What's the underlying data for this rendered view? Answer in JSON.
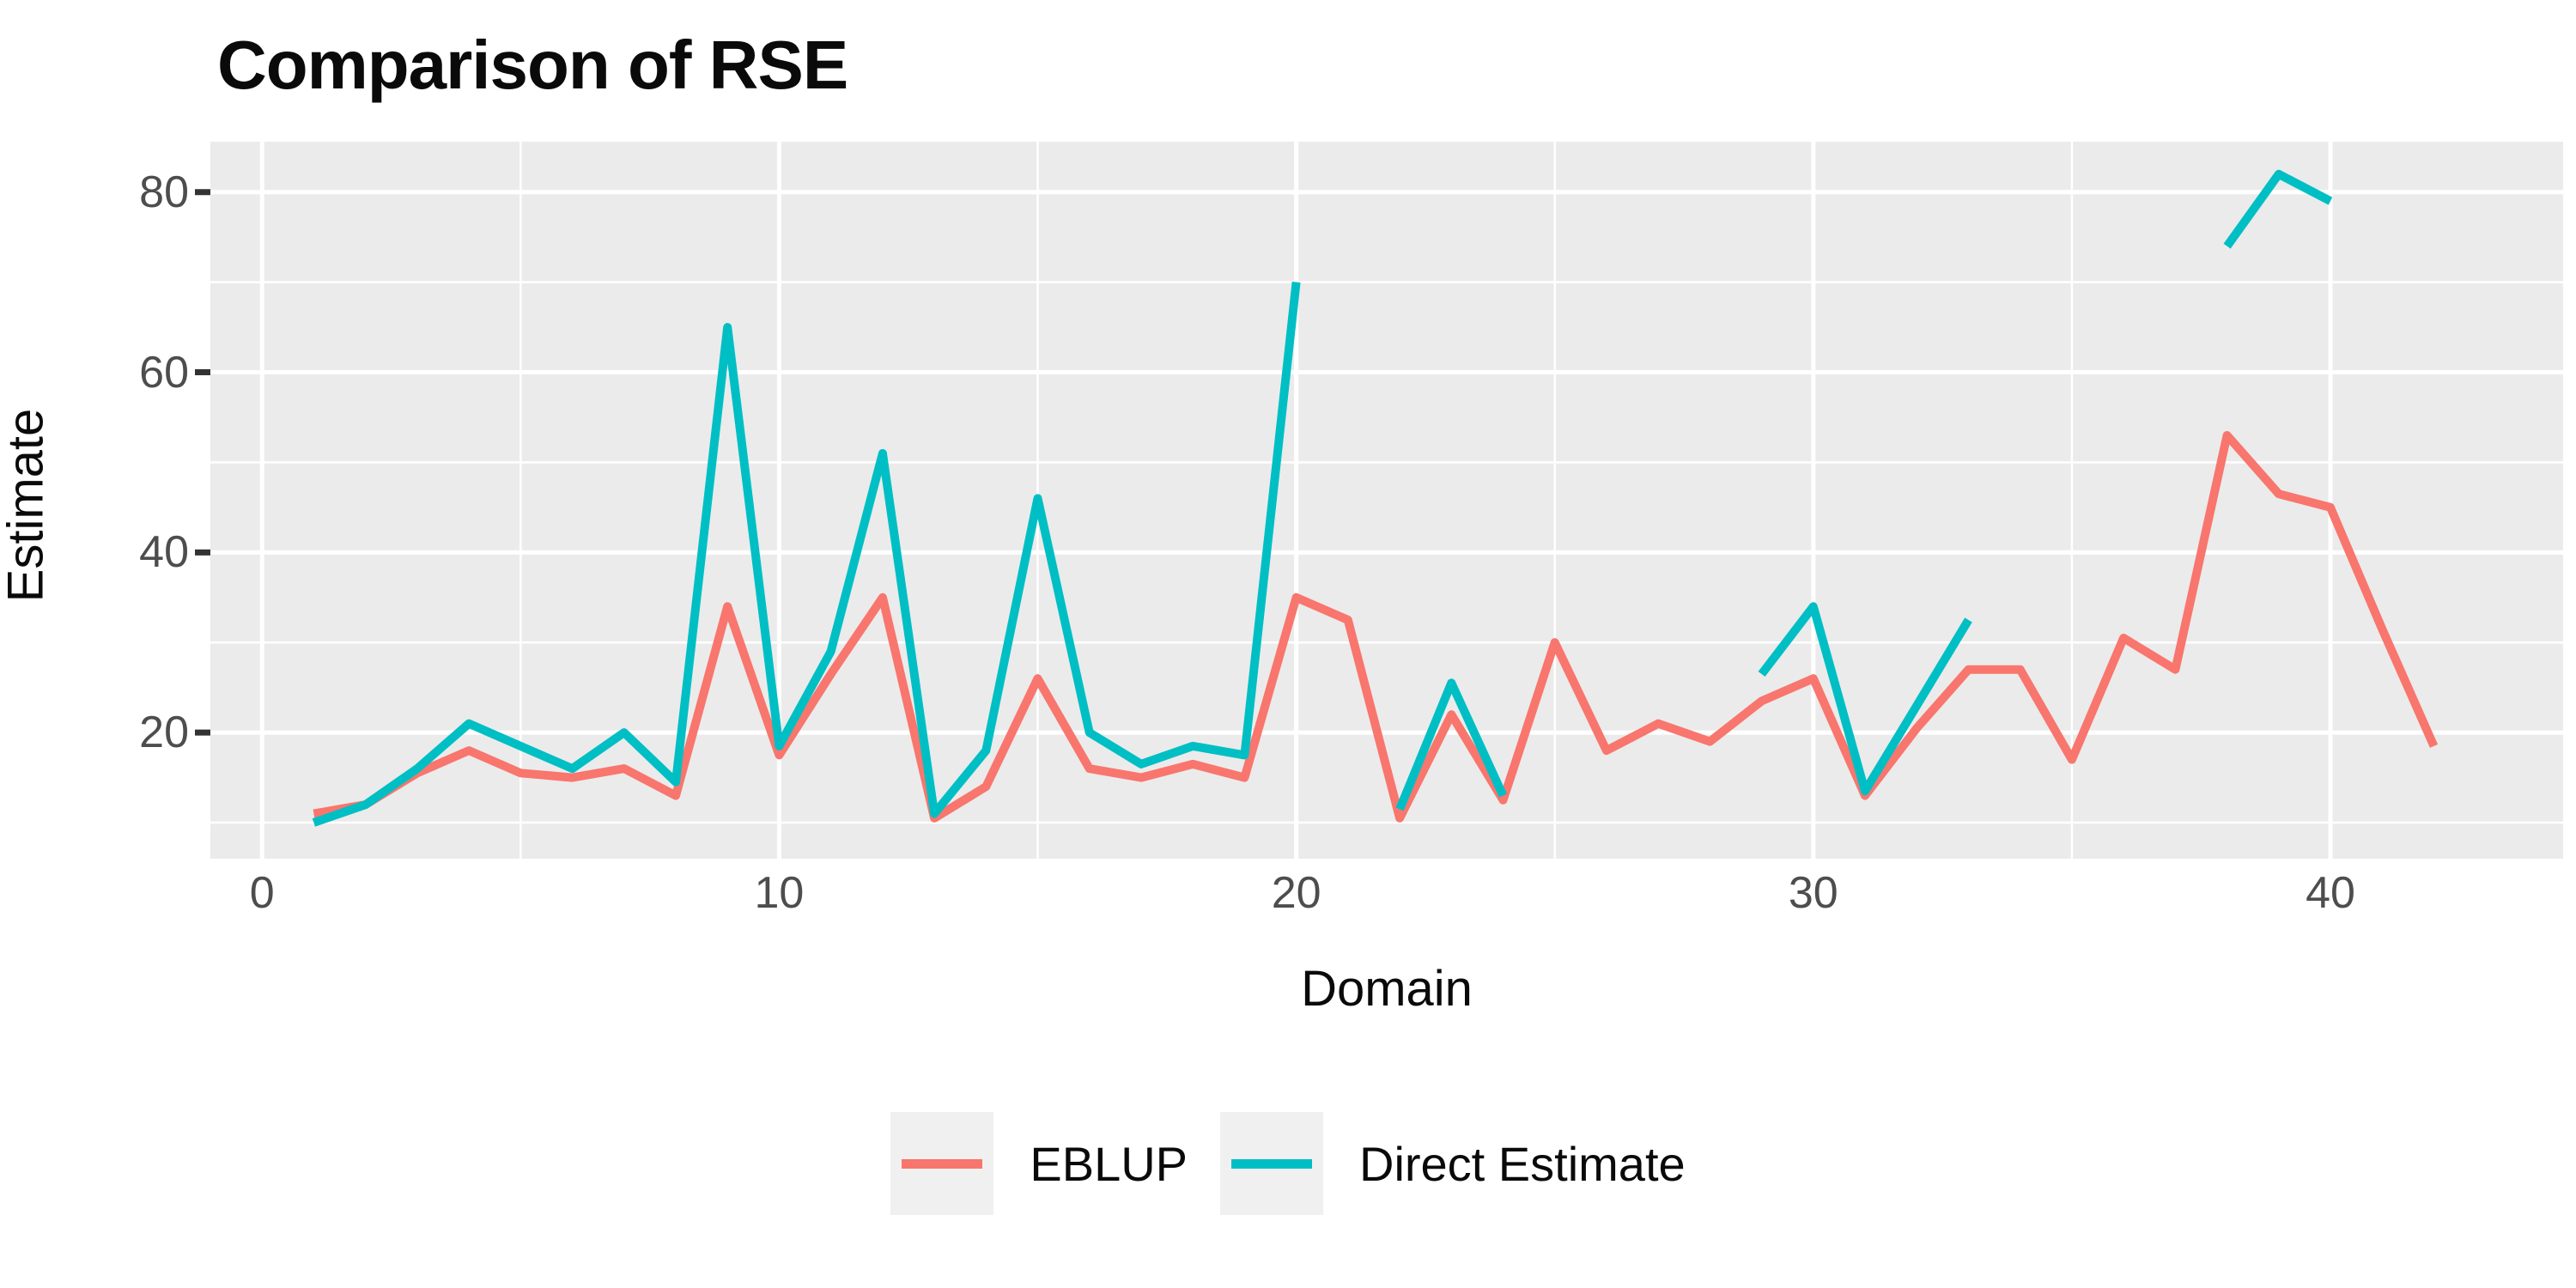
{
  "title": "Comparison of RSE",
  "colors": {
    "panel_background": "#EBEBEB",
    "grid_major": "#FFFFFF",
    "grid_minor": "#FFFFFF",
    "axis_tick_mark": "#333333",
    "axis_tick_text": "#4D4D4D",
    "title_text": "#0A0A0A",
    "legend_key_background": "#F0F0F0",
    "eblup_line": "#F8766D",
    "direct_estimate_line": "#00BFC4"
  },
  "legend": {
    "items": [
      {
        "label": "EBLUP",
        "color": "#F8766D"
      },
      {
        "label": "Direct Estimate",
        "color": "#00BFC4"
      }
    ]
  },
  "chart_data": {
    "type": "line",
    "title": "Comparison of RSE",
    "xlabel": "Domain",
    "ylabel": "Estimate",
    "grid": true,
    "legend_position": "bottom",
    "x": [
      1,
      2,
      3,
      4,
      5,
      6,
      7,
      8,
      9,
      10,
      11,
      12,
      13,
      14,
      15,
      16,
      17,
      18,
      19,
      20,
      21,
      22,
      23,
      24,
      25,
      26,
      27,
      28,
      29,
      30,
      31,
      32,
      33,
      34,
      35,
      36,
      37,
      38,
      39,
      40,
      41,
      42
    ],
    "series": [
      {
        "name": "EBLUP",
        "color": "#F8766D",
        "values": [
          11,
          12,
          15.5,
          18,
          15.5,
          15,
          16,
          13,
          34,
          17.5,
          26.5,
          35,
          10.5,
          14,
          26,
          16,
          15,
          16.5,
          15,
          35,
          32.5,
          10.5,
          22,
          12.5,
          30,
          18,
          21,
          19,
          23.5,
          26,
          13,
          20.5,
          27,
          27,
          17,
          30.5,
          27,
          53,
          46.5,
          45,
          31.5,
          18.5
        ]
      },
      {
        "name": "Direct Estimate",
        "color": "#00BFC4",
        "values": [
          10,
          12,
          16,
          21,
          18.5,
          16,
          20,
          14.5,
          65,
          18.5,
          29,
          51,
          11,
          18,
          46,
          20,
          16.5,
          18.5,
          17.5,
          70,
          null,
          11.5,
          25.5,
          13,
          null,
          null,
          null,
          null,
          26.5,
          34,
          13.5,
          23,
          32.5,
          null,
          null,
          null,
          null,
          74,
          82,
          79,
          null,
          null
        ]
      }
    ],
    "x_axis": {
      "ticks": [
        0,
        10,
        20,
        30,
        40
      ],
      "minor_ticks": [
        5,
        15,
        25,
        35
      ],
      "range": [
        -1,
        44.5
      ]
    },
    "y_axis": {
      "ticks": [
        20,
        40,
        60,
        80
      ],
      "minor_ticks": [
        10,
        30,
        50,
        70
      ],
      "range": [
        6,
        85.6
      ]
    }
  }
}
